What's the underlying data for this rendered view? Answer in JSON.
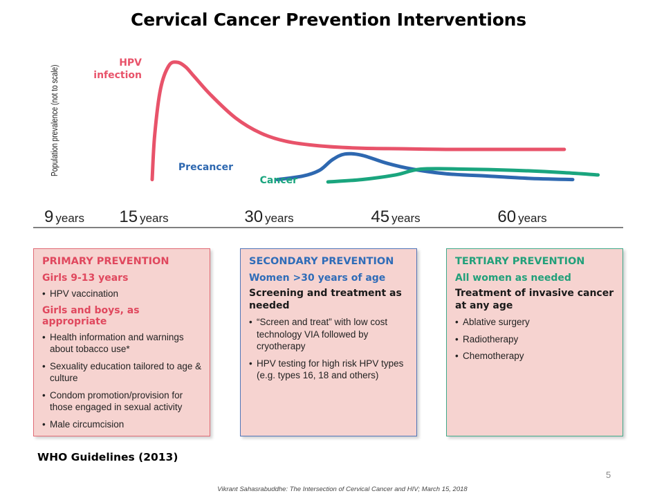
{
  "slide": {
    "title": "Cervical Cancer Prevention Interventions",
    "source": "WHO Guidelines (2013)",
    "slide_number": "5",
    "footer": "Vikrant Sahasrabuddhe: The Intersection of Cervical Cancer and HIV; March 15, 2018"
  },
  "chart_data": {
    "type": "line",
    "ylabel": "Population prevalence (not to scale)",
    "x_ticks": [
      {
        "value": 9,
        "num": "9",
        "unit": "years"
      },
      {
        "value": 15,
        "num": "15",
        "unit": "years"
      },
      {
        "value": 30,
        "num": "30",
        "unit": "years"
      },
      {
        "value": 45,
        "num": "45",
        "unit": "years"
      },
      {
        "value": 60,
        "num": "60",
        "unit": "years"
      }
    ],
    "xlim": [
      5,
      68
    ],
    "ylim": [
      0,
      100
    ],
    "series": [
      {
        "name": "HPV infection",
        "label_lines": [
          "HPV",
          "infection"
        ],
        "color": "#e8536a",
        "x": [
          15,
          15.3,
          16,
          17,
          18,
          19,
          20,
          22,
          25,
          28,
          31,
          35,
          40,
          45,
          50,
          55,
          60,
          64
        ],
        "y": [
          2,
          40,
          80,
          100,
          103,
          99,
          91,
          75,
          55,
          42,
          35,
          31,
          29,
          28.5,
          28,
          28,
          28,
          28
        ]
      },
      {
        "name": "Precancer",
        "label_lines": [
          "Precancer"
        ],
        "color": "#2e68b0",
        "x": [
          30,
          33,
          35,
          36.5,
          38,
          40,
          43,
          46,
          50,
          55,
          60,
          65
        ],
        "y": [
          2,
          5,
          10,
          19,
          24,
          23,
          16,
          11,
          7,
          5,
          3,
          2
        ]
      },
      {
        "name": "Cancer",
        "label_lines": [
          "Cancer"
        ],
        "color": "#1aa57e",
        "x": [
          36,
          40,
          44,
          47,
          52,
          58,
          64,
          68
        ],
        "y": [
          0,
          2,
          6,
          11,
          11,
          10,
          8,
          6
        ]
      }
    ]
  },
  "boxes": {
    "primary": {
      "heading": "PRIMARY PREVENTION",
      "groups": [
        {
          "sub": "Girls 9-13 years",
          "items": [
            "HPV vaccination"
          ]
        },
        {
          "sub": "Girls and boys, as appropriate",
          "items": [
            "Health information and warnings about tobacco use*",
            "Sexuality education tailored to age & culture",
            "Condom promotion/provision for those engaged in sexual activity",
            "Male circumcision"
          ]
        }
      ]
    },
    "secondary": {
      "heading": "SECONDARY PREVENTION",
      "sub": "Women >30 years of age",
      "text": "Screening and treatment as needed",
      "items": [
        "“Screen and treat” with low cost technology VIA followed by cryotherapy",
        "HPV testing for high risk HPV types (e.g. types 16, 18 and others)"
      ]
    },
    "tertiary": {
      "heading": "TERTIARY PREVENTION",
      "sub": "All women as needed",
      "text": "Treatment of invasive cancer at any age",
      "items": [
        "Ablative surgery",
        "Radiotherapy",
        "Chemotherapy"
      ]
    }
  }
}
